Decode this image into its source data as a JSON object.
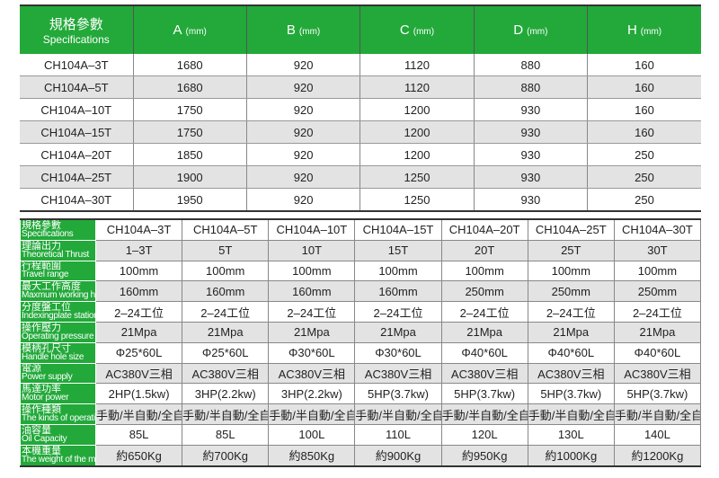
{
  "dims_table": {
    "header": {
      "spec_cn": "規格參數",
      "spec_en": "Specifications",
      "columns": [
        {
          "letter": "A",
          "unit": "(mm)"
        },
        {
          "letter": "B",
          "unit": "(mm)"
        },
        {
          "letter": "C",
          "unit": "(mm)"
        },
        {
          "letter": "D",
          "unit": "(mm)"
        },
        {
          "letter": "H",
          "unit": "(mm)"
        }
      ]
    },
    "rows": [
      [
        "CH104A–3T",
        "1680",
        "920",
        "1120",
        "880",
        "160"
      ],
      [
        "CH104A–5T",
        "1680",
        "920",
        "1120",
        "880",
        "160"
      ],
      [
        "CH104A–10T",
        "1750",
        "920",
        "1200",
        "930",
        "160"
      ],
      [
        "CH104A–15T",
        "1750",
        "920",
        "1200",
        "930",
        "160"
      ],
      [
        "CH104A–20T",
        "1850",
        "920",
        "1200",
        "930",
        "250"
      ],
      [
        "CH104A–25T",
        "1900",
        "920",
        "1250",
        "930",
        "250"
      ],
      [
        "CH104A–30T",
        "1950",
        "920",
        "1250",
        "930",
        "250"
      ]
    ]
  },
  "spec_table": {
    "rows": [
      {
        "cn": "規格參數",
        "en": "Specifications",
        "values": [
          "CH104A–3T",
          "CH104A–5T",
          "CH104A–10T",
          "CH104A–15T",
          "CH104A–20T",
          "CH104A–25T",
          "CH104A–30T"
        ]
      },
      {
        "cn": "理論出力",
        "en": "Theoretical Thrust",
        "values": [
          "1–3T",
          "5T",
          "10T",
          "15T",
          "20T",
          "25T",
          "30T"
        ]
      },
      {
        "cn": "行程範圍",
        "en": "Travel range",
        "values": [
          "100mm",
          "100mm",
          "100mm",
          "100mm",
          "100mm",
          "100mm",
          "100mm"
        ]
      },
      {
        "cn": "最大工作高度",
        "en": "Maxmum working height",
        "values": [
          "160mm",
          "160mm",
          "160mm",
          "160mm",
          "250mm",
          "250mm",
          "250mm"
        ]
      },
      {
        "cn": "分度盤工位",
        "en": "Indexingplate station",
        "values": [
          "2–24工位",
          "2–24工位",
          "2–24工位",
          "2–24工位",
          "2–24工位",
          "2–24工位",
          "2–24工位"
        ]
      },
      {
        "cn": "操作壓力",
        "en": "Operating pressure",
        "values": [
          "21Mpa",
          "21Mpa",
          "21Mpa",
          "21Mpa",
          "21Mpa",
          "21Mpa",
          "21Mpa"
        ]
      },
      {
        "cn": "模柄孔尺寸",
        "en": "Handle hole size",
        "values": [
          "Φ25*60L",
          "Φ25*60L",
          "Φ30*60L",
          "Φ30*60L",
          "Φ40*60L",
          "Φ40*60L",
          "Φ40*60L"
        ]
      },
      {
        "cn": "電源",
        "en": "Power supply",
        "values": [
          "AC380V三相",
          "AC380V三相",
          "AC380V三相",
          "AC380V三相",
          "AC380V三相",
          "AC380V三相",
          "AC380V三相"
        ]
      },
      {
        "cn": "馬達功率",
        "en": "Motor power",
        "values": [
          "2HP(1.5kw)",
          "3HP(2.2kw)",
          "3HP(2.2kw)",
          "5HP(3.7kw)",
          "5HP(3.7kw)",
          "5HP(3.7kw)",
          "5HP(3.7kw)"
        ]
      },
      {
        "cn": "操作種類",
        "en": "The kinds of operations",
        "values": [
          "手動/半自動/全自動",
          "手動/半自動/全自動",
          "手動/半自動/全自動",
          "手動/半自動/全自動",
          "手動/半自動/全自動",
          "手動/半自動/全自動",
          "手動/半自動/全自動"
        ]
      },
      {
        "cn": "油容量",
        "en": "Oil Capacity",
        "values": [
          "85L",
          "85L",
          "100L",
          "110L",
          "120L",
          "130L",
          "140L"
        ]
      },
      {
        "cn": "本機重量",
        "en": "The weight of the machine",
        "values": [
          "約650Kg",
          "約700Kg",
          "約850Kg",
          "約900Kg",
          "約950Kg",
          "約1000Kg",
          "約1200Kg"
        ]
      }
    ]
  },
  "colors": {
    "header_green": "#22a93a",
    "row_grey": "#e3e3e3"
  }
}
